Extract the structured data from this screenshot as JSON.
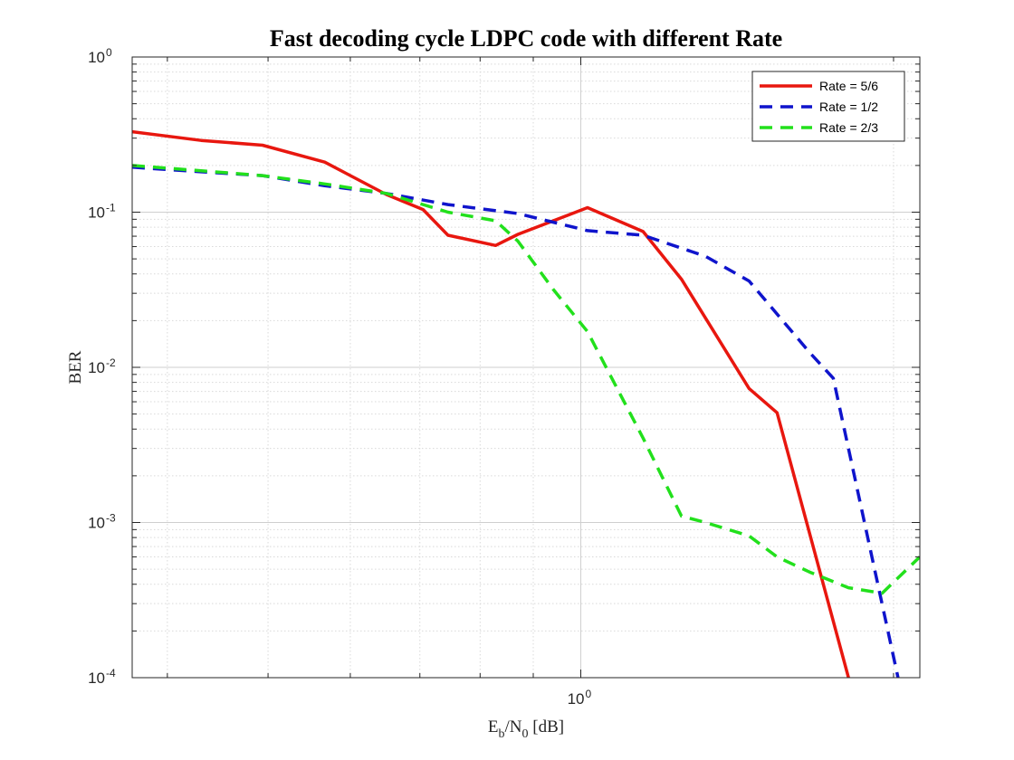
{
  "chart_data": {
    "type": "line",
    "title": "Fast decoding cycle LDPC code with different Rate",
    "xlabel": {
      "main": "E",
      "sub1": "b",
      "mid": "/N",
      "sub2": "0",
      "tail": " [dB]"
    },
    "ylabel": "BER",
    "x_scale": "log",
    "y_scale": "log",
    "xlim": [
      0.37,
      2.12
    ],
    "ylim": [
      0.0001,
      1
    ],
    "x_ticks": [
      {
        "value": 1,
        "base": "10",
        "exp": "0"
      }
    ],
    "y_ticks": [
      {
        "value": 1,
        "base": "10",
        "exp": "0"
      },
      {
        "value": 0.1,
        "base": "10",
        "exp": "-1"
      },
      {
        "value": 0.01,
        "base": "10",
        "exp": "-2"
      },
      {
        "value": 0.001,
        "base": "10",
        "exp": "-3"
      },
      {
        "value": 0.0001,
        "base": "10",
        "exp": "-4"
      }
    ],
    "grid": true,
    "minor_grid": true,
    "legend_position": "top-right",
    "series": [
      {
        "name": "Rate = 5/6",
        "color": "#e8170f",
        "dash": "solid",
        "x": [
          0.37,
          0.431,
          0.494,
          0.567,
          0.65,
          0.705,
          0.745,
          0.828,
          0.87,
          1.015,
          1.148,
          1.25,
          1.452,
          1.545,
          1.81
        ],
        "y": [
          0.33,
          0.29,
          0.27,
          0.21,
          0.13,
          0.104,
          0.071,
          0.061,
          0.072,
          0.107,
          0.075,
          0.037,
          0.0073,
          0.0051,
          0.0001
        ]
      },
      {
        "name": "Rate = 1/2",
        "color": "#0f14cc",
        "dash": "dashed",
        "x": [
          0.37,
          0.431,
          0.494,
          0.567,
          0.65,
          0.745,
          0.87,
          1.015,
          1.148,
          1.318,
          1.452,
          1.66,
          1.75,
          2.02
        ],
        "y": [
          0.195,
          0.182,
          0.172,
          0.148,
          0.132,
          0.112,
          0.098,
          0.076,
          0.071,
          0.052,
          0.036,
          0.0125,
          0.0085,
          0.0001
        ]
      },
      {
        "name": "Rate = 2/3",
        "color": "#22e01c",
        "dash": "dashed",
        "x": [
          0.37,
          0.431,
          0.494,
          0.567,
          0.65,
          0.745,
          0.828,
          0.87,
          0.94,
          1.015,
          1.148,
          1.25,
          1.318,
          1.452,
          1.545,
          1.66,
          1.81,
          1.95,
          2.12
        ],
        "y": [
          0.2,
          0.185,
          0.172,
          0.152,
          0.132,
          0.1,
          0.088,
          0.065,
          0.032,
          0.017,
          0.0035,
          0.0011,
          0.001,
          0.00082,
          0.0006,
          0.00048,
          0.00038,
          0.00035,
          0.0006
        ]
      }
    ]
  }
}
